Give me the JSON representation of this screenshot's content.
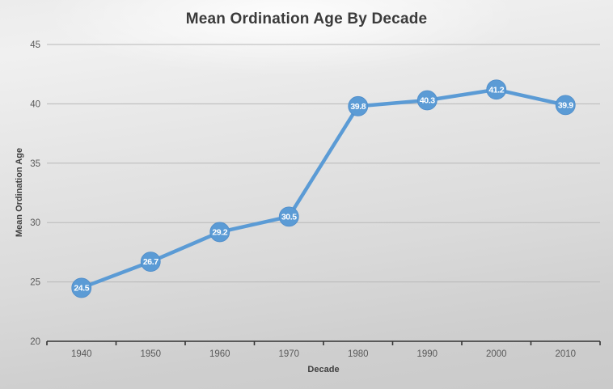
{
  "chart_data": {
    "type": "line",
    "title": "Mean Ordination Age By Decade",
    "xlabel": "Decade",
    "ylabel": "Mean Ordination Age",
    "categories": [
      "1940",
      "1950",
      "1960",
      "1970",
      "1980",
      "1990",
      "2000",
      "2010"
    ],
    "series": [
      {
        "name": "Mean Ordination Age",
        "values": [
          24.5,
          26.7,
          29.2,
          30.5,
          39.8,
          40.3,
          41.2,
          39.9
        ]
      }
    ],
    "data_labels": [
      "24.5",
      "26.7",
      "29.2",
      "30.5",
      "39.8",
      "40.3",
      "41.2",
      "39.9"
    ],
    "ylim": [
      20,
      45
    ],
    "yticks": [
      20,
      25,
      30,
      35,
      40,
      45
    ],
    "grid": true,
    "legend_position": "none",
    "colors": {
      "line": "#5B9BD5",
      "marker_fill": "#5B9BD5",
      "marker_edge": "#4E8CC9",
      "data_label_text": "#FFFFFF",
      "gridline": "#B8B8B8",
      "axis_line": "#333333",
      "tick_label": "#595959",
      "title_text": "#3B3B3B"
    }
  }
}
